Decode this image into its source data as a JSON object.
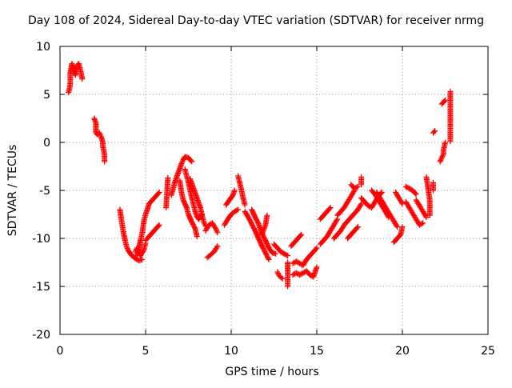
{
  "chart_data": {
    "type": "scatter",
    "title": "Day 108 of 2024, Sidereal Day-to-day VTEC variation (SDTVAR) for receiver nrmg",
    "xlabel": "GPS time / hours",
    "ylabel": "SDTVAR / TECUs",
    "xlim": [
      0,
      25
    ],
    "ylim": [
      -20,
      10
    ],
    "xticks": [
      0,
      5,
      10,
      15,
      20,
      25
    ],
    "yticks": [
      -20,
      -15,
      -10,
      -5,
      0,
      5,
      10
    ],
    "xtick_labels": [
      "0",
      "5",
      "10",
      "15",
      "20",
      "25"
    ],
    "ytick_labels": [
      "-20",
      "-15",
      "-10",
      "-5",
      "0",
      "5",
      "10"
    ],
    "grid": true,
    "marker": "+",
    "series_color": "#ff0000",
    "segments": [
      [
        [
          0.5,
          5.2
        ],
        [
          0.6,
          6.0
        ],
        [
          0.6,
          7.2
        ],
        [
          0.7,
          8.2
        ],
        [
          0.8,
          7.6
        ],
        [
          0.9,
          7.0
        ],
        [
          1.0,
          8.0
        ],
        [
          1.1,
          8.2
        ],
        [
          1.2,
          7.5
        ],
        [
          1.3,
          6.6
        ]
      ],
      [
        [
          2.0,
          2.5
        ],
        [
          2.1,
          2.0
        ],
        [
          2.1,
          1.0
        ],
        [
          2.2,
          0.8
        ]
      ],
      [
        [
          2.3,
          1.0
        ],
        [
          2.4,
          0.6
        ],
        [
          2.5,
          0.0
        ],
        [
          2.5,
          -0.4
        ],
        [
          2.6,
          -1.2
        ],
        [
          2.6,
          -2.0
        ]
      ],
      [
        [
          3.5,
          -7.0
        ],
        [
          3.6,
          -8.2
        ],
        [
          3.7,
          -9.3
        ],
        [
          3.8,
          -10.2
        ],
        [
          3.9,
          -10.9
        ],
        [
          4.0,
          -11.3
        ],
        [
          4.2,
          -11.8
        ],
        [
          4.4,
          -12.1
        ],
        [
          4.6,
          -12.3
        ],
        [
          4.8,
          -12.2
        ]
      ],
      [
        [
          4.5,
          -11.8
        ],
        [
          4.6,
          -11.2
        ],
        [
          4.7,
          -10.2
        ],
        [
          4.8,
          -9.5
        ],
        [
          4.9,
          -8.2
        ],
        [
          5.0,
          -7.5
        ],
        [
          5.1,
          -7.0
        ],
        [
          5.2,
          -6.4
        ],
        [
          5.4,
          -6.0
        ],
        [
          5.6,
          -5.6
        ],
        [
          5.8,
          -5.2
        ]
      ],
      [
        [
          4.4,
          -11.4
        ],
        [
          4.5,
          -11.0
        ],
        [
          4.7,
          -11.8
        ],
        [
          4.9,
          -11.2
        ],
        [
          5.0,
          -10.5
        ]
      ],
      [
        [
          5.0,
          -10.2
        ],
        [
          5.2,
          -9.8
        ],
        [
          5.4,
          -9.4
        ],
        [
          5.6,
          -9.0
        ],
        [
          5.8,
          -8.6
        ]
      ],
      [
        [
          6.2,
          -6.8
        ],
        [
          6.3,
          -3.7
        ]
      ],
      [
        [
          6.5,
          -5.5
        ],
        [
          6.7,
          -4.2
        ],
        [
          6.9,
          -3.2
        ],
        [
          7.1,
          -2.2
        ],
        [
          7.2,
          -1.8
        ],
        [
          7.3,
          -1.5
        ],
        [
          7.5,
          -1.6
        ],
        [
          7.7,
          -2.0
        ]
      ],
      [
        [
          7.0,
          -4.0
        ],
        [
          7.1,
          -5.2
        ],
        [
          7.2,
          -6.0
        ],
        [
          7.4,
          -6.8
        ],
        [
          7.5,
          -7.5
        ],
        [
          7.7,
          -8.3
        ],
        [
          7.9,
          -9.0
        ],
        [
          8.0,
          -9.8
        ]
      ],
      [
        [
          7.3,
          -2.8
        ],
        [
          7.4,
          -3.5
        ],
        [
          7.5,
          -4.2
        ],
        [
          7.6,
          -5.0
        ],
        [
          7.7,
          -5.8
        ],
        [
          7.8,
          -6.5
        ],
        [
          7.9,
          -7.2
        ],
        [
          8.0,
          -7.7
        ],
        [
          8.1,
          -8.0
        ],
        [
          8.3,
          -7.5
        ]
      ],
      [
        [
          7.6,
          -3.8
        ],
        [
          7.8,
          -4.8
        ],
        [
          8.0,
          -5.8
        ],
        [
          8.2,
          -6.8
        ],
        [
          8.3,
          -7.6
        ],
        [
          8.4,
          -8.3
        ],
        [
          8.5,
          -8.7
        ]
      ],
      [
        [
          8.5,
          -9.2
        ],
        [
          8.7,
          -8.6
        ],
        [
          8.9,
          -8.4
        ],
        [
          9.1,
          -9.0
        ],
        [
          9.2,
          -9.4
        ]
      ],
      [
        [
          8.6,
          -12.0
        ],
        [
          8.8,
          -11.7
        ],
        [
          9.0,
          -11.4
        ],
        [
          9.2,
          -10.8
        ]
      ],
      [
        [
          9.6,
          -8.6
        ],
        [
          9.8,
          -8.0
        ],
        [
          10.0,
          -7.5
        ],
        [
          10.2,
          -7.2
        ],
        [
          10.4,
          -7.0
        ]
      ],
      [
        [
          9.7,
          -6.5
        ],
        [
          9.9,
          -6.0
        ],
        [
          10.1,
          -5.5
        ],
        [
          10.2,
          -5.0
        ]
      ],
      [
        [
          10.4,
          -3.5
        ],
        [
          10.5,
          -4.2
        ],
        [
          10.6,
          -5.0
        ],
        [
          10.7,
          -5.8
        ],
        [
          10.8,
          -6.5
        ]
      ],
      [
        [
          10.8,
          -7.2
        ],
        [
          11.0,
          -7.8
        ],
        [
          11.2,
          -8.5
        ],
        [
          11.4,
          -9.2
        ],
        [
          11.6,
          -10.0
        ],
        [
          11.8,
          -10.8
        ],
        [
          12.0,
          -11.5
        ],
        [
          12.2,
          -12.2
        ]
      ],
      [
        [
          11.2,
          -7.0
        ],
        [
          11.4,
          -7.8
        ],
        [
          11.6,
          -8.5
        ],
        [
          11.8,
          -9.5
        ],
        [
          12.0,
          -10.2
        ],
        [
          12.2,
          -11.0
        ],
        [
          12.4,
          -11.5
        ],
        [
          12.6,
          -11.6
        ]
      ],
      [
        [
          11.8,
          -9.6
        ],
        [
          12.0,
          -8.6
        ],
        [
          12.1,
          -7.6
        ]
      ],
      [
        [
          12.5,
          -10.6
        ],
        [
          12.7,
          -11.0
        ],
        [
          12.9,
          -11.4
        ],
        [
          13.1,
          -11.6
        ],
        [
          13.3,
          -11.8
        ]
      ],
      [
        [
          12.7,
          -13.5
        ],
        [
          12.8,
          -13.9
        ],
        [
          13.0,
          -14.2
        ]
      ],
      [
        [
          13.3,
          -12.5
        ],
        [
          13.3,
          -13.5
        ],
        [
          13.3,
          -14.3
        ],
        [
          13.3,
          -15.0
        ]
      ],
      [
        [
          13.5,
          -10.8
        ],
        [
          13.7,
          -10.4
        ],
        [
          13.9,
          -10.0
        ],
        [
          14.1,
          -9.6
        ]
      ],
      [
        [
          13.6,
          -12.6
        ],
        [
          13.8,
          -12.4
        ],
        [
          14.0,
          -12.6
        ],
        [
          14.2,
          -12.8
        ],
        [
          14.4,
          -12.2
        ],
        [
          14.6,
          -11.8
        ],
        [
          14.8,
          -11.4
        ],
        [
          15.0,
          -11.0
        ]
      ],
      [
        [
          13.6,
          -13.8
        ],
        [
          13.8,
          -13.6
        ],
        [
          14.0,
          -13.8
        ],
        [
          14.2,
          -13.6
        ],
        [
          14.4,
          -13.4
        ],
        [
          14.6,
          -13.8
        ],
        [
          14.8,
          -14.0
        ],
        [
          15.0,
          -13.0
        ]
      ],
      [
        [
          15.2,
          -10.6
        ],
        [
          15.4,
          -10.2
        ],
        [
          15.6,
          -9.8
        ],
        [
          15.8,
          -9.2
        ],
        [
          16.0,
          -8.6
        ],
        [
          16.2,
          -8.0
        ]
      ],
      [
        [
          15.2,
          -8.0
        ],
        [
          15.4,
          -7.6
        ],
        [
          15.6,
          -7.2
        ],
        [
          15.8,
          -6.8
        ]
      ],
      [
        [
          16.2,
          -7.6
        ],
        [
          16.4,
          -7.2
        ],
        [
          16.6,
          -6.8
        ],
        [
          16.8,
          -6.2
        ],
        [
          17.0,
          -5.6
        ],
        [
          17.2,
          -5.0
        ]
      ],
      [
        [
          16.0,
          -10.0
        ],
        [
          16.2,
          -9.6
        ],
        [
          16.4,
          -9.2
        ],
        [
          16.6,
          -8.6
        ],
        [
          16.8,
          -8.2
        ],
        [
          17.0,
          -7.8
        ],
        [
          17.2,
          -7.4
        ],
        [
          17.4,
          -7.0
        ],
        [
          17.6,
          -6.4
        ]
      ],
      [
        [
          16.8,
          -10.0
        ],
        [
          17.0,
          -9.6
        ],
        [
          17.2,
          -9.2
        ],
        [
          17.4,
          -8.8
        ]
      ],
      [
        [
          17.0,
          -4.4
        ],
        [
          17.2,
          -4.8
        ],
        [
          17.4,
          -4.6
        ]
      ],
      [
        [
          17.6,
          -4.4
        ],
        [
          17.6,
          -3.6
        ]
      ],
      [
        [
          17.6,
          -5.8
        ],
        [
          17.8,
          -6.2
        ],
        [
          18.0,
          -6.6
        ],
        [
          18.2,
          -6.8
        ],
        [
          18.4,
          -6.2
        ],
        [
          18.6,
          -5.6
        ],
        [
          18.8,
          -5.2
        ]
      ],
      [
        [
          18.2,
          -5.0
        ],
        [
          18.4,
          -5.4
        ],
        [
          18.6,
          -6.0
        ],
        [
          18.8,
          -6.6
        ],
        [
          19.0,
          -7.2
        ],
        [
          19.2,
          -7.8
        ]
      ],
      [
        [
          18.5,
          -5.2
        ],
        [
          18.7,
          -5.8
        ],
        [
          18.9,
          -6.4
        ],
        [
          19.1,
          -7.0
        ],
        [
          19.3,
          -7.6
        ],
        [
          19.5,
          -8.2
        ],
        [
          19.7,
          -8.8
        ]
      ],
      [
        [
          19.5,
          -10.4
        ],
        [
          19.7,
          -10.0
        ],
        [
          19.9,
          -9.6
        ],
        [
          20.0,
          -8.8
        ]
      ],
      [
        [
          19.6,
          -5.2
        ],
        [
          19.8,
          -5.8
        ],
        [
          20.0,
          -6.4
        ]
      ],
      [
        [
          20.2,
          -4.6
        ],
        [
          20.4,
          -4.8
        ],
        [
          20.6,
          -5.0
        ],
        [
          20.8,
          -5.4
        ]
      ],
      [
        [
          20.2,
          -6.2
        ],
        [
          20.4,
          -6.8
        ],
        [
          20.6,
          -7.4
        ],
        [
          20.8,
          -8.0
        ],
        [
          21.0,
          -8.6
        ],
        [
          21.2,
          -8.4
        ]
      ],
      [
        [
          20.8,
          -6.0
        ],
        [
          21.0,
          -6.6
        ],
        [
          21.2,
          -7.2
        ],
        [
          21.4,
          -7.8
        ]
      ],
      [
        [
          21.4,
          -3.6
        ],
        [
          21.6,
          -6.0
        ],
        [
          21.6,
          -7.6
        ]
      ],
      [
        [
          21.8,
          -5.0
        ],
        [
          21.8,
          -4.6
        ],
        [
          21.8,
          -4.2
        ]
      ],
      [
        [
          21.8,
          1.0
        ],
        [
          21.9,
          1.2
        ]
      ],
      [
        [
          22.2,
          -2.0
        ],
        [
          22.3,
          -1.6
        ],
        [
          22.4,
          -1.2
        ],
        [
          22.4,
          -0.8
        ],
        [
          22.5,
          0.0
        ]
      ],
      [
        [
          22.3,
          4.0
        ],
        [
          22.4,
          4.2
        ],
        [
          22.5,
          4.4
        ]
      ],
      [
        [
          22.8,
          5.3
        ],
        [
          22.8,
          1.6
        ],
        [
          22.8,
          0.1
        ]
      ]
    ]
  }
}
